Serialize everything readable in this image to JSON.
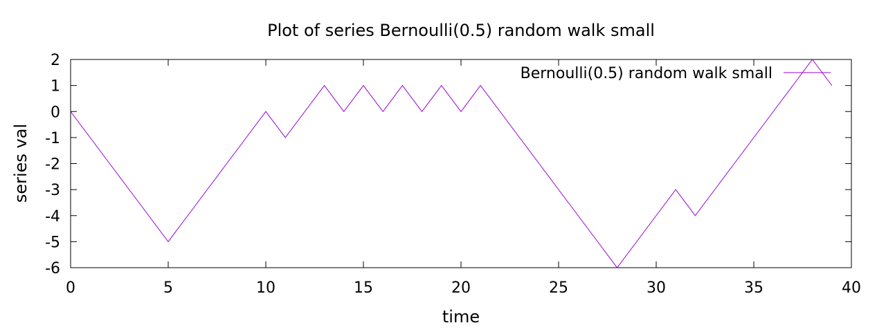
{
  "chart_data": {
    "type": "line",
    "title": "Plot of series Bernoulli(0.5) random walk small",
    "xlabel": "time",
    "ylabel": "series val",
    "xlim": [
      0,
      40
    ],
    "ylim": [
      -6,
      2
    ],
    "x_ticks": [
      0,
      5,
      10,
      15,
      20,
      25,
      30,
      35,
      40
    ],
    "y_ticks": [
      2,
      1,
      0,
      -1,
      -2,
      -3,
      -4,
      -5,
      -6
    ],
    "grid": false,
    "legend_position": "top-right",
    "series": [
      {
        "name": "Bernoulli(0.5) random walk small",
        "color": "#9400d3",
        "x": [
          0,
          1,
          2,
          3,
          4,
          5,
          6,
          7,
          8,
          9,
          10,
          11,
          12,
          13,
          14,
          15,
          16,
          17,
          18,
          19,
          20,
          21,
          22,
          23,
          24,
          25,
          26,
          27,
          28,
          29,
          30,
          31,
          32,
          33,
          34,
          35,
          36,
          37,
          38,
          39
        ],
        "values": [
          0,
          -1,
          -2,
          -3,
          -4,
          -5,
          -4,
          -3,
          -2,
          -1,
          0,
          -1,
          0,
          1,
          0,
          1,
          0,
          1,
          0,
          1,
          0,
          1,
          0,
          -1,
          -2,
          -3,
          -4,
          -5,
          -6,
          -5,
          -4,
          -3,
          -4,
          -3,
          -2,
          -1,
          0,
          1,
          2,
          1
        ]
      }
    ]
  }
}
